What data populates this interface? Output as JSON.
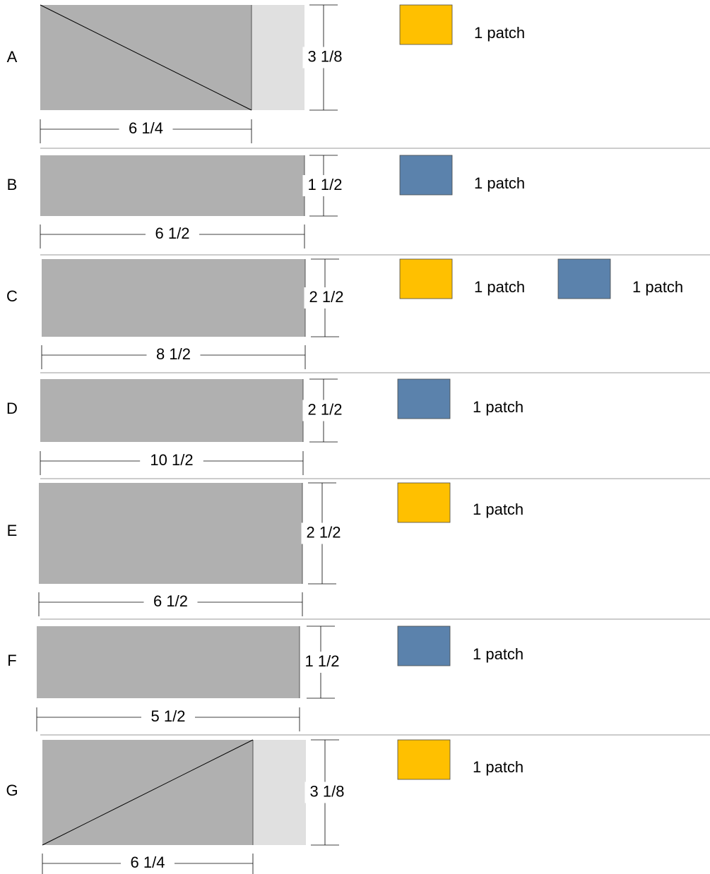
{
  "colors": {
    "piece_fill": "#b0b0b0",
    "piece_extension_fill": "#e0e0e0",
    "yellow": "#ffc000",
    "blue": "#5b82ac",
    "line": "#000000",
    "divider": "#9a9a9a"
  },
  "pieces": [
    {
      "letter": "A",
      "width_label": "6 1/4",
      "height_label": "3 1/8",
      "diagonal": "down",
      "patches": [
        {
          "color_name": "yellow",
          "label": "1 patch"
        }
      ]
    },
    {
      "letter": "B",
      "width_label": "6 1/2",
      "height_label": "1 1/2",
      "diagonal": "none",
      "patches": [
        {
          "color_name": "blue",
          "label": "1 patch"
        }
      ]
    },
    {
      "letter": "C",
      "width_label": "8 1/2",
      "height_label": "2 1/2",
      "diagonal": "none",
      "patches": [
        {
          "color_name": "yellow",
          "label": "1 patch"
        },
        {
          "color_name": "blue",
          "label": "1 patch"
        }
      ]
    },
    {
      "letter": "D",
      "width_label": "10 1/2",
      "height_label": "2 1/2",
      "diagonal": "none",
      "patches": [
        {
          "color_name": "blue",
          "label": "1 patch"
        }
      ]
    },
    {
      "letter": "E",
      "width_label": "6 1/2",
      "height_label": "2 1/2",
      "diagonal": "none",
      "patches": [
        {
          "color_name": "yellow",
          "label": "1 patch"
        }
      ]
    },
    {
      "letter": "F",
      "width_label": "5 1/2",
      "height_label": "1 1/2",
      "diagonal": "none",
      "patches": [
        {
          "color_name": "blue",
          "label": "1 patch"
        }
      ]
    },
    {
      "letter": "G",
      "width_label": "6 1/4",
      "height_label": "3 1/8",
      "diagonal": "up",
      "patches": [
        {
          "color_name": "yellow",
          "label": "1 patch"
        }
      ]
    }
  ]
}
